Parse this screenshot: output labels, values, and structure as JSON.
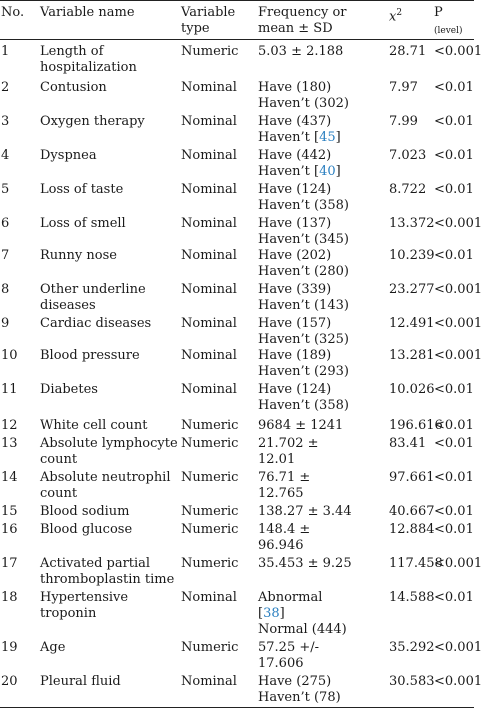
{
  "header": {
    "no": "No.",
    "variable_name": "Variable name",
    "variable_type_1": "Variable",
    "variable_type_2": "type",
    "freq_1": "Frequency or",
    "freq_2": "mean ± SD",
    "chi_base": "x",
    "chi_sup": "2",
    "p": "P",
    "p_sub": "(level)"
  },
  "rows": [
    {
      "no": "1",
      "name": [
        "Length of",
        "hospitalization"
      ],
      "type": "Numeric",
      "freq": [
        "5.03 ± 2.188"
      ],
      "chi": "28.71",
      "p": "<0.001"
    },
    {
      "no": "2",
      "name": [
        "Contusion"
      ],
      "type": "Nominal",
      "freq": [
        "Have (180)",
        "Haven’t (302)"
      ],
      "chi": "7.97",
      "p": "<0.01"
    },
    {
      "no": "3",
      "name": [
        "Oxygen therapy"
      ],
      "type": "Nominal",
      "freq": [
        "Have (437)",
        "Haven’t [",
        "45",
        "]"
      ],
      "chi": "7.99",
      "p": "<0.01"
    },
    {
      "no": "4",
      "name": [
        "Dyspnea"
      ],
      "type": "Nominal",
      "freq": [
        "Have (442)",
        "Haven’t [",
        "40",
        "]"
      ],
      "chi": "7.023",
      "p": "<0.01"
    },
    {
      "no": "5",
      "name": [
        "Loss of taste"
      ],
      "type": "Nominal",
      "freq": [
        "Have (124)",
        "Haven’t (358)"
      ],
      "chi": "8.722",
      "p": "<0.01"
    },
    {
      "no": "6",
      "name": [
        "Loss of smell"
      ],
      "type": "Nominal",
      "freq": [
        "Have (137)",
        "Haven’t (345)"
      ],
      "chi": "13.372",
      "p": "<0.001"
    },
    {
      "no": "7",
      "name": [
        "Runny nose"
      ],
      "type": "Nominal",
      "freq": [
        "Have (202)",
        "Haven’t (280)"
      ],
      "chi": "10.239",
      "p": "<0.01"
    },
    {
      "no": "8",
      "name": [
        "Other underline",
        "diseases"
      ],
      "type": "Nominal",
      "freq": [
        "Have (339)",
        "Haven’t (143)"
      ],
      "chi": "23.277",
      "p": "<0.001"
    },
    {
      "no": "9",
      "name": [
        "Cardiac diseases"
      ],
      "type": "Nominal",
      "freq": [
        "Have (157)",
        "Haven’t (325)"
      ],
      "chi": "12.491",
      "p": "<0.001"
    },
    {
      "no": "10",
      "name": [
        "Blood pressure"
      ],
      "type": "Nominal",
      "freq": [
        "Have (189)",
        "Haven’t (293)"
      ],
      "chi": "13.281",
      "p": "<0.001"
    },
    {
      "no": "11",
      "name": [
        "Diabetes"
      ],
      "type": "Nominal",
      "freq": [
        "Have (124)",
        "Haven’t (358)"
      ],
      "chi": "10.026",
      "p": "<0.01"
    },
    {
      "no": "12",
      "name": [
        "White cell count"
      ],
      "type": "Numeric",
      "freq": [
        "9684 ± 1241"
      ],
      "chi": "196.616",
      "p": "<0.01"
    },
    {
      "no": "13",
      "name": [
        "Absolute lymphocyte",
        "count"
      ],
      "type": "Numeric",
      "freq": [
        "21.702 ±",
        "12.01"
      ],
      "chi": "83.41",
      "p": "<0.01"
    },
    {
      "no": "14",
      "name": [
        "Absolute neutrophil",
        "count"
      ],
      "type": "Numeric",
      "freq": [
        "76.71 ±",
        "12.765"
      ],
      "chi": "97.661",
      "p": "<0.01"
    },
    {
      "no": "15",
      "name": [
        "Blood sodium"
      ],
      "type": "Numeric",
      "freq": [
        "138.27 ± 3.44"
      ],
      "chi": "40.667",
      "p": "<0.01"
    },
    {
      "no": "16",
      "name": [
        "Blood glucose"
      ],
      "type": "Numeric",
      "freq": [
        "148.4 ±",
        "96.946"
      ],
      "chi": "12.884",
      "p": "<0.01"
    },
    {
      "no": "17",
      "name": [
        "Activated partial",
        "thromboplastin time"
      ],
      "type": "Numeric",
      "freq": [
        "35.453 ± 9.25"
      ],
      "chi": "117.458",
      "p": "<0.001"
    },
    {
      "no": "18",
      "name": [
        "Hypertensive",
        "troponin"
      ],
      "type": "Nominal",
      "freq": [
        "Abnormal",
        "[",
        "38",
        "]",
        "Normal (444)"
      ],
      "chi": "14.588",
      "p": "<0.01"
    },
    {
      "no": "19",
      "name": [
        "Age"
      ],
      "type": "Numeric",
      "freq": [
        "57.25 +/-",
        "17.606"
      ],
      "chi": "35.292",
      "p": "<0.001"
    },
    {
      "no": "20",
      "name": [
        "Pleural fluid"
      ],
      "type": "Nominal",
      "freq": [
        "Have (275)",
        "Haven’t (78)"
      ],
      "chi": "30.583",
      "p": "<0.001"
    }
  ]
}
